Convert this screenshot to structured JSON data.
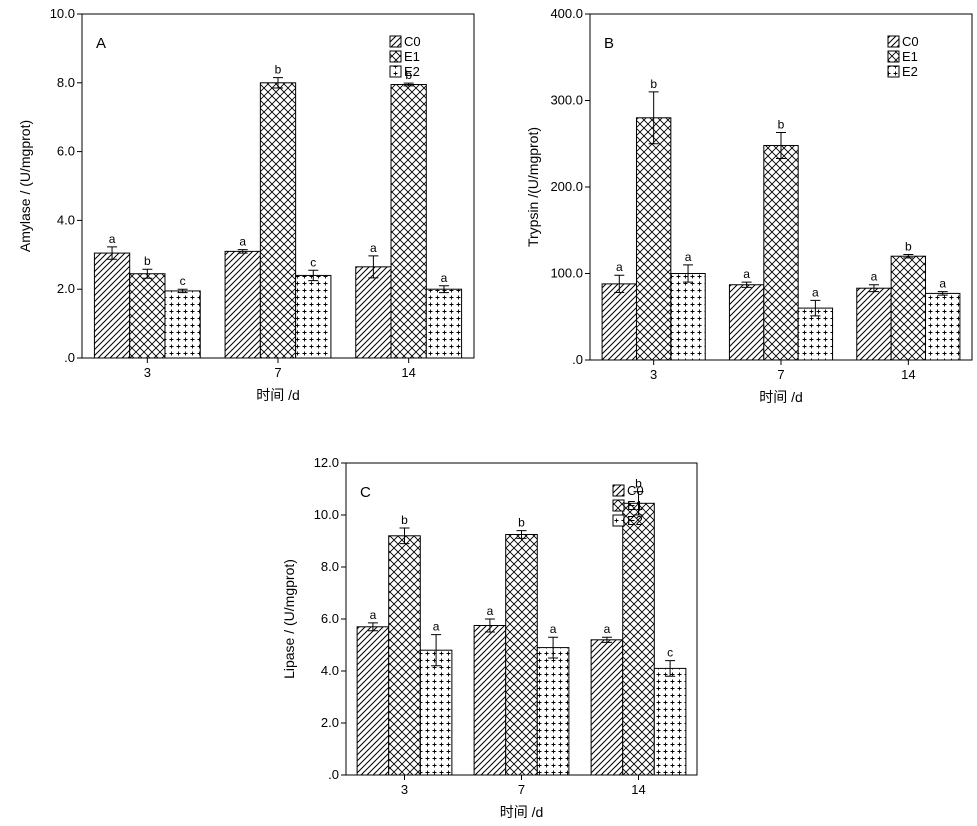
{
  "legend": [
    {
      "key": "C0",
      "label": "C0",
      "pattern": "pat-diag"
    },
    {
      "key": "E1",
      "label": "E1",
      "pattern": "pat-cross"
    },
    {
      "key": "E2",
      "label": "E2",
      "pattern": "pat-plus"
    }
  ],
  "chart_data": [
    {
      "type": "bar",
      "panel": "A",
      "categories": [
        "3",
        "7",
        "14"
      ],
      "xlabel": "时间 /d",
      "ylabel": "Amylase / (U/mgprot)",
      "ylim": [
        0,
        10
      ],
      "yticks": [
        ".0",
        "2.0",
        "4.0",
        "6.0",
        "8.0",
        "10.0"
      ],
      "series": [
        {
          "name": "C0",
          "values": [
            3.05,
            3.1,
            2.65
          ],
          "errors": [
            0.18,
            0.05,
            0.32
          ],
          "labels": [
            "a",
            "a",
            "a"
          ]
        },
        {
          "name": "E1",
          "values": [
            2.45,
            8.0,
            7.95
          ],
          "errors": [
            0.13,
            0.15,
            0.04
          ],
          "labels": [
            "b",
            "b",
            "b"
          ]
        },
        {
          "name": "E2",
          "values": [
            1.95,
            2.4,
            2.0
          ],
          "errors": [
            0.05,
            0.15,
            0.1
          ],
          "labels": [
            "c",
            "c",
            "a"
          ]
        }
      ]
    },
    {
      "type": "bar",
      "panel": "B",
      "categories": [
        "3",
        "7",
        "14"
      ],
      "xlabel": "时间 /d",
      "ylabel": "Trypsin /(U/mgprot)",
      "ylim": [
        0,
        400
      ],
      "yticks": [
        ".0",
        "100.0",
        "200.0",
        "300.0",
        "400.0"
      ],
      "series": [
        {
          "name": "C0",
          "values": [
            88,
            87,
            83
          ],
          "errors": [
            10,
            3,
            4
          ],
          "labels": [
            "a",
            "a",
            "a"
          ]
        },
        {
          "name": "E1",
          "values": [
            280,
            248,
            120
          ],
          "errors": [
            30,
            15,
            2
          ],
          "labels": [
            "b",
            "b",
            "b"
          ]
        },
        {
          "name": "E2",
          "values": [
            100,
            60,
            77
          ],
          "errors": [
            10,
            9,
            2
          ],
          "labels": [
            "a",
            "a",
            "a"
          ]
        }
      ]
    },
    {
      "type": "bar",
      "panel": "C",
      "categories": [
        "3",
        "7",
        "14"
      ],
      "xlabel": "时间 /d",
      "ylabel": "Lipase / (U/mgprot)",
      "ylim": [
        0,
        12
      ],
      "yticks": [
        ".0",
        "2.0",
        "4.0",
        "6.0",
        "8.0",
        "10.0",
        "12.0"
      ],
      "series": [
        {
          "name": "C0",
          "values": [
            5.7,
            5.75,
            5.2
          ],
          "errors": [
            0.15,
            0.25,
            0.1
          ],
          "labels": [
            "a",
            "a",
            "a"
          ]
        },
        {
          "name": "E1",
          "values": [
            9.2,
            9.25,
            10.45
          ],
          "errors": [
            0.3,
            0.15,
            0.45
          ],
          "labels": [
            "b",
            "b",
            "b"
          ]
        },
        {
          "name": "E2",
          "values": [
            4.8,
            4.9,
            4.1
          ],
          "errors": [
            0.6,
            0.4,
            0.3
          ],
          "labels": [
            "a",
            "a",
            "c"
          ]
        }
      ]
    }
  ]
}
